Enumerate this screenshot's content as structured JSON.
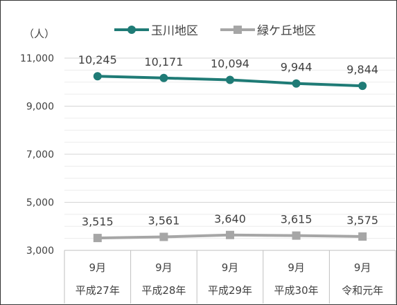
{
  "chart_data": {
    "type": "line",
    "ylabel": "（人）",
    "ylim": [
      3000,
      11000
    ],
    "y_ticks": [
      3000,
      5000,
      7000,
      9000,
      11000
    ],
    "y_tick_labels": [
      "3,000",
      "5,000",
      "7,000",
      "9,000",
      "11,000"
    ],
    "grid": true,
    "legend_position": "top",
    "categories": [
      {
        "line1": "9月",
        "line2": "平成27年"
      },
      {
        "line1": "9月",
        "line2": "平成28年"
      },
      {
        "line1": "9月",
        "line2": "平成29年"
      },
      {
        "line1": "9月",
        "line2": "平成30年"
      },
      {
        "line1": "9月",
        "line2": "令和元年"
      }
    ],
    "series": [
      {
        "name": "玉川地区",
        "color": "#1f7b76",
        "marker": "circle",
        "values": [
          10245,
          10171,
          10094,
          9944,
          9844
        ],
        "labels": [
          "10,245",
          "10,171",
          "10,094",
          "9,944",
          "9,844"
        ]
      },
      {
        "name": "緑ケ丘地区",
        "color": "#a6a6a6",
        "marker": "square",
        "values": [
          3515,
          3561,
          3640,
          3615,
          3575
        ],
        "labels": [
          "3,515",
          "3,561",
          "3,640",
          "3,615",
          "3,575"
        ]
      }
    ]
  }
}
